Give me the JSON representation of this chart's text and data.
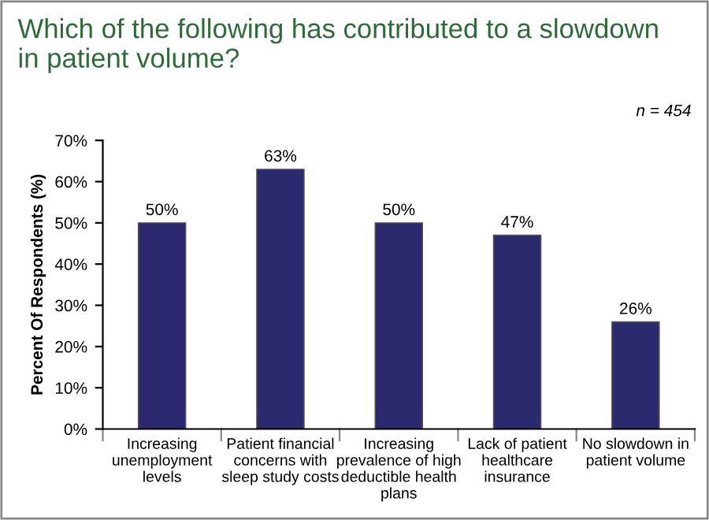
{
  "chart_data": {
    "type": "bar",
    "title": "Which of the following has contributed to a slowdown\nin patient volume?",
    "ylabel": "Percent Of Respondents (%)",
    "annotations": [
      "n = 454"
    ],
    "categories": [
      "Increasing\nunemployment\nlevels",
      "Patient financial\nconcerns with\nsleep study costs",
      "Increasing\nprevalence of high\ndeductible health\nplans",
      "Lack of patient\nhealthcare\ninsurance",
      "No slowdown in\npatient volume"
    ],
    "values": [
      50,
      63,
      50,
      47,
      26
    ],
    "value_labels": [
      "50%",
      "63%",
      "50%",
      "47%",
      "26%"
    ],
    "color": "#2b2a6e",
    "ylim": [
      0,
      70
    ],
    "yticks": [
      {
        "value": 0,
        "label": "0%"
      },
      {
        "value": 10,
        "label": "10%"
      },
      {
        "value": 20,
        "label": "20%"
      },
      {
        "value": 30,
        "label": "30%"
      },
      {
        "value": 40,
        "label": "40%"
      },
      {
        "value": 50,
        "label": "50%"
      },
      {
        "value": 60,
        "label": "60%"
      },
      {
        "value": 70,
        "label": "70%"
      }
    ],
    "grid": false,
    "legend": false
  }
}
